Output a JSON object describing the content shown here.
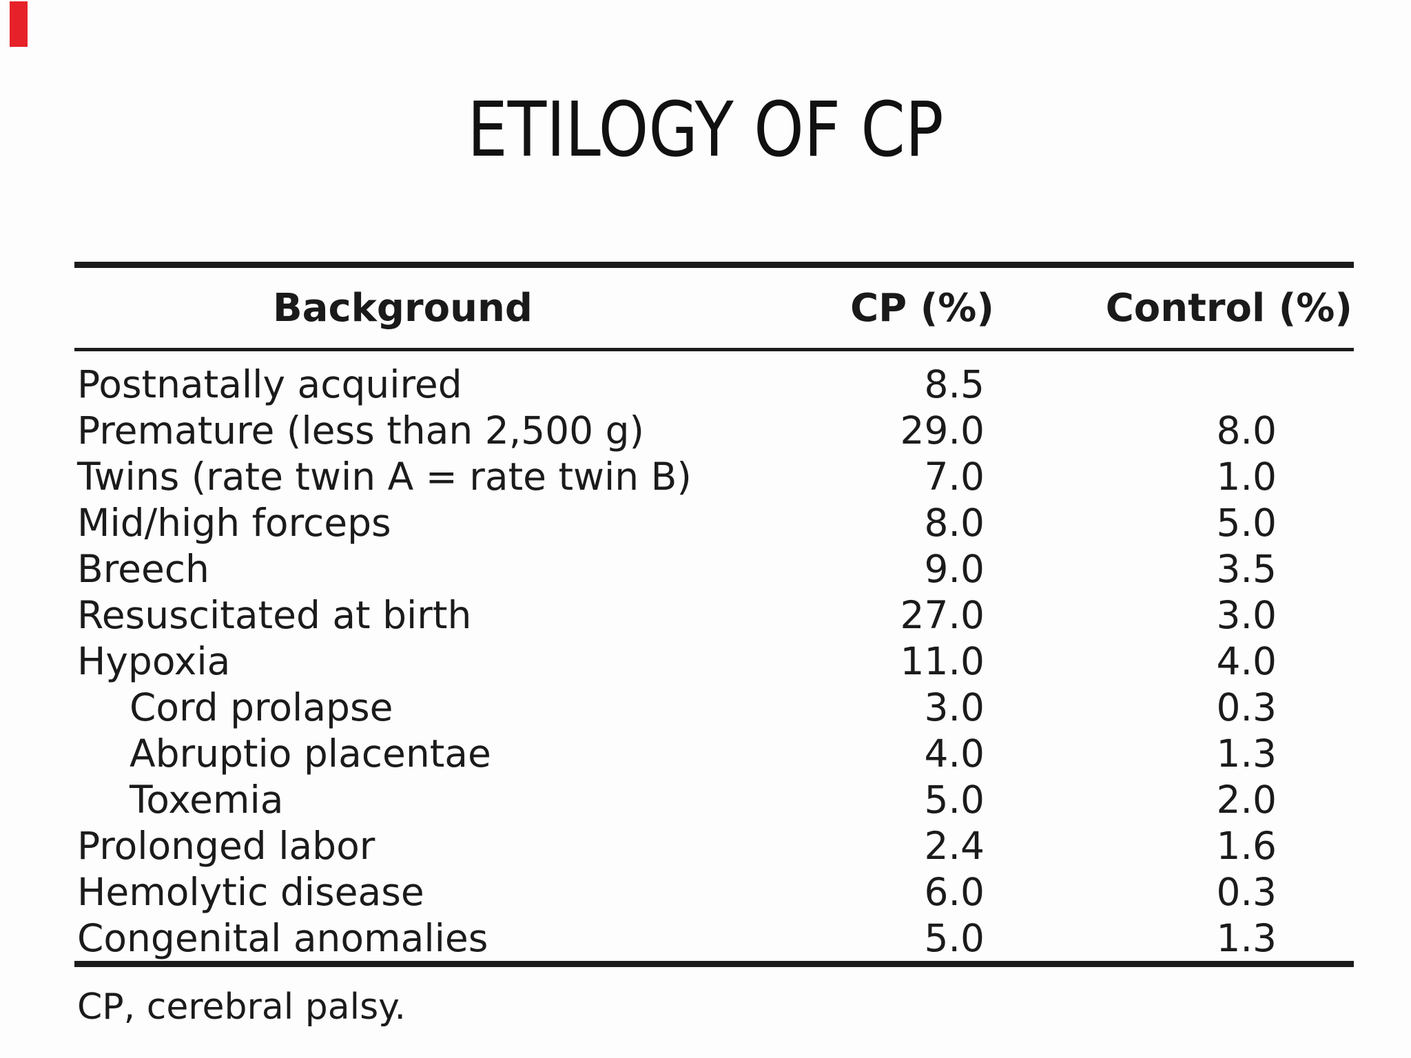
{
  "slide": {
    "title": "ETILOGY OF CP",
    "footnote": "CP, cerebral palsy.",
    "corner_marker_color": "#e62129",
    "text_color": "#1b1b1b",
    "background_color": "#fdfdfd",
    "rule_color": "#1c1c1c"
  },
  "table": {
    "columns": [
      "Background",
      "CP (%)",
      "Control (%)"
    ],
    "rows": [
      {
        "label": "Postnatally acquired",
        "indent": false,
        "cp": "8.5",
        "control": ""
      },
      {
        "label": "Premature (less than 2,500 g)",
        "indent": false,
        "cp": "29.0",
        "control": "8.0"
      },
      {
        "label": "Twins (rate twin A = rate twin B)",
        "indent": false,
        "cp": "7.0",
        "control": "1.0"
      },
      {
        "label": "Mid/high forceps",
        "indent": false,
        "cp": "8.0",
        "control": "5.0"
      },
      {
        "label": "Breech",
        "indent": false,
        "cp": "9.0",
        "control": "3.5"
      },
      {
        "label": "Resuscitated at birth",
        "indent": false,
        "cp": "27.0",
        "control": "3.0"
      },
      {
        "label": "Hypoxia",
        "indent": false,
        "cp": "11.0",
        "control": "4.0"
      },
      {
        "label": "Cord prolapse",
        "indent": true,
        "cp": "3.0",
        "control": "0.3"
      },
      {
        "label": "Abruptio placentae",
        "indent": true,
        "cp": "4.0",
        "control": "1.3"
      },
      {
        "label": "Toxemia",
        "indent": true,
        "cp": "5.0",
        "control": "2.0"
      },
      {
        "label": "Prolonged labor",
        "indent": false,
        "cp": "2.4",
        "control": "1.6"
      },
      {
        "label": "Hemolytic disease",
        "indent": false,
        "cp": "6.0",
        "control": "0.3"
      },
      {
        "label": "Congenital anomalies",
        "indent": false,
        "cp": "5.0",
        "control": "1.3"
      }
    ]
  },
  "chart_data": {
    "type": "table",
    "title": "ETILOGY OF CP",
    "columns": [
      "Background",
      "CP (%)",
      "Control (%)"
    ],
    "rows": [
      [
        "Postnatally acquired",
        8.5,
        null
      ],
      [
        "Premature (less than 2,500 g)",
        29.0,
        8.0
      ],
      [
        "Twins (rate twin A = rate twin B)",
        7.0,
        1.0
      ],
      [
        "Mid/high forceps",
        8.0,
        5.0
      ],
      [
        "Breech",
        9.0,
        3.5
      ],
      [
        "Resuscitated at birth",
        27.0,
        3.0
      ],
      [
        "Hypoxia",
        11.0,
        4.0
      ],
      [
        "Cord prolapse",
        3.0,
        0.3
      ],
      [
        "Abruptio placentae",
        4.0,
        1.3
      ],
      [
        "Toxemia",
        5.0,
        2.0
      ],
      [
        "Prolonged labor",
        2.4,
        1.6
      ],
      [
        "Hemolytic disease",
        6.0,
        0.3
      ],
      [
        "Congenital anomalies",
        5.0,
        1.3
      ]
    ],
    "footnote": "CP, cerebral palsy."
  }
}
